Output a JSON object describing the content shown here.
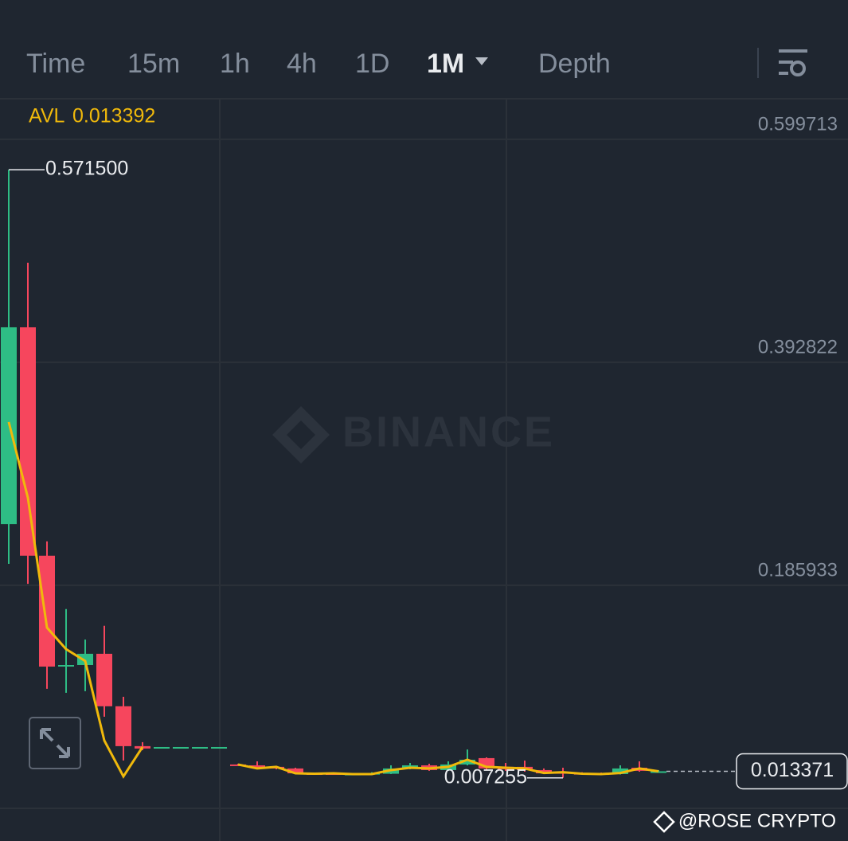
{
  "tabs": [
    "Time",
    "15m",
    "1h",
    "4h",
    "1D",
    "1M",
    "Depth"
  ],
  "active_tab": 5,
  "chart_data": {
    "type": "candlestick",
    "watermark": "BINANCE",
    "up_color": "#2ebd85",
    "down_color": "#f6465d",
    "open": [
      0.2427,
      0.4253,
      0.2134,
      0.111,
      0.112,
      0.1224,
      0.0737,
      0.0367,
      0.0359,
      0.0359,
      0.0359,
      0.0359,
      0.0197,
      0.0189,
      0.0175,
      0.016,
      0.0115,
      0.0115,
      0.0108,
      0.0108,
      0.0111,
      0.016,
      0.0189,
      0.0145,
      0.0197,
      0.0256,
      0.0175,
      0.0175,
      0.0145,
      0.013,
      0.0118,
      0.0115,
      0.0108,
      0.0167,
      0.013
    ],
    "high": [
      0.5715,
      0.4852,
      0.2267,
      0.1639,
      0.1356,
      0.1484,
      0.0825,
      0.0404,
      0.0359,
      0.0359,
      0.0359,
      0.0359,
      0.0204,
      0.0226,
      0.0182,
      0.0167,
      0.0122,
      0.0122,
      0.0115,
      0.0125,
      0.0189,
      0.0211,
      0.0204,
      0.0226,
      0.0336,
      0.0263,
      0.0211,
      0.0233,
      0.016,
      0.0167,
      0.0125,
      0.0122,
      0.0189,
      0.0226,
      0.0145
    ],
    "low": [
      0.2058,
      0.1873,
      0.0899,
      0.0862,
      0.0877,
      0.064,
      0.0234,
      0.033,
      0.0359,
      0.0359,
      0.0359,
      0.0359,
      0.0185,
      0.016,
      0.0152,
      0.0108,
      0.0104,
      0.0101,
      0.0104,
      0.0104,
      0.0108,
      0.0152,
      0.0138,
      0.0138,
      0.0189,
      0.0145,
      0.0138,
      0.013,
      0.0108,
      0.007255,
      0.0104,
      0.0101,
      0.0104,
      0.013,
      0.0125
    ],
    "close": [
      0.4253,
      0.2134,
      0.1105,
      0.112,
      0.1224,
      0.0737,
      0.0367,
      0.0345,
      0.0359,
      0.0359,
      0.0359,
      0.0359,
      0.0189,
      0.0167,
      0.016,
      0.0115,
      0.0111,
      0.0108,
      0.0111,
      0.0118,
      0.016,
      0.0189,
      0.0145,
      0.0197,
      0.0241,
      0.016,
      0.0153,
      0.0145,
      0.0115,
      0.0111,
      0.0111,
      0.0108,
      0.016,
      0.0138,
      0.013371
    ],
    "ma": {
      "name": "AVL",
      "value": 0.013392,
      "color": "#f0b90b",
      "values": [
        0.3374,
        0.2672,
        0.1467,
        0.1267,
        0.1157,
        0.0419,
        0.0086,
        0.0359,
        null,
        null,
        null,
        null,
        0.0197,
        0.016,
        0.0175,
        0.0115,
        0.0111,
        0.0115,
        0.0108,
        0.0108,
        0.0145,
        0.0167,
        0.016,
        0.0175,
        0.0241,
        0.0175,
        0.0167,
        0.016,
        0.0118,
        0.0125,
        0.0111,
        0.0108,
        0.0118,
        0.016,
        0.013392
      ]
    },
    "max_annotation": {
      "value": 0.5715,
      "label": "0.571500"
    },
    "min_annotation": 0.007255,
    "last_price": 0.013371,
    "ylim": [
      -0.021,
      0.6366
    ],
    "yticks": [
      0.599713,
      0.392822,
      0.185933
    ],
    "grid": true
  },
  "credit": "@ROSE CRYPTO"
}
